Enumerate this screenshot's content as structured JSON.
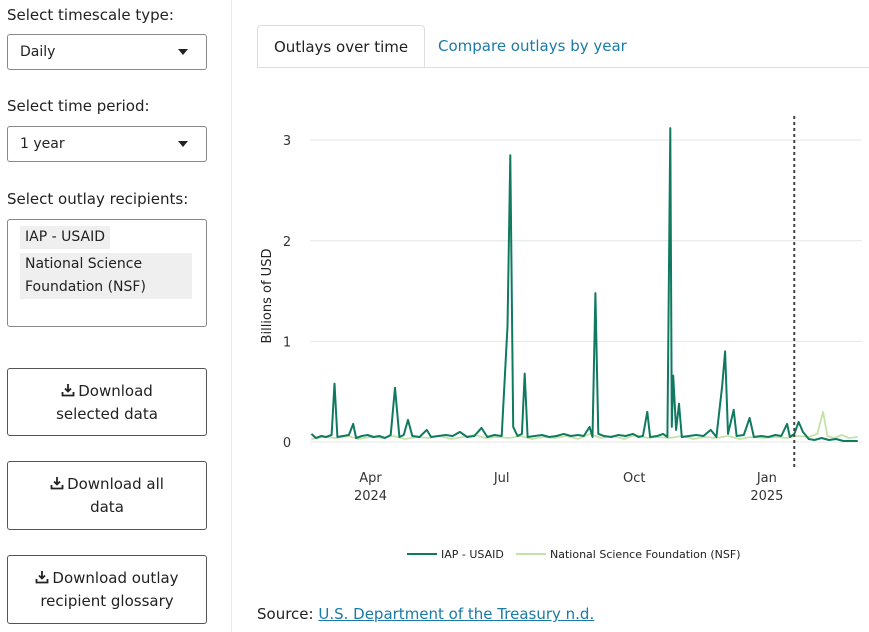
{
  "sidebar": {
    "timescale_label": "Select timescale type:",
    "timescale_value": "Daily",
    "period_label": "Select time period:",
    "period_value": "1 year",
    "recipients_label": "Select outlay recipients:",
    "recipients": [
      "IAP - USAID",
      "National Science",
      "Foundation (NSF)"
    ],
    "buttons": [
      {
        "line1": "Download",
        "line2": "selected data"
      },
      {
        "line1": "Download all",
        "line2": "data"
      },
      {
        "line1": "Download outlay",
        "line2": "recipient glossary"
      }
    ]
  },
  "tabs": [
    {
      "label": "Outlays over time",
      "active": true
    },
    {
      "label": "Compare outlays by year",
      "active": false
    }
  ],
  "source": {
    "prefix": "Source: ",
    "link_text": "U.S. Department of the Treasury n.d."
  },
  "chart_data": {
    "type": "line",
    "ylabel": "Billions of USD",
    "xlabel": "",
    "ylim": [
      0,
      3.2
    ],
    "yticks": [
      0,
      1,
      2,
      3
    ],
    "x_ticks": [
      {
        "date": "2024-04-01",
        "label": "Apr",
        "sublabel": "2024"
      },
      {
        "date": "2024-07-01",
        "label": "Jul",
        "sublabel": ""
      },
      {
        "date": "2024-10-01",
        "label": "Oct",
        "sublabel": ""
      },
      {
        "date": "2025-01-01",
        "label": "Jan",
        "sublabel": "2025"
      }
    ],
    "xrange": [
      "2024-02-19",
      "2025-03-08"
    ],
    "vline_date": "2025-01-20",
    "grid": true,
    "legend_position": "bottom",
    "series": [
      {
        "name": "IAP - USAID",
        "color": "#0f7a60",
        "points": [
          [
            "2024-02-20",
            0.08
          ],
          [
            "2024-02-23",
            0.04
          ],
          [
            "2024-02-27",
            0.06
          ],
          [
            "2024-03-01",
            0.05
          ],
          [
            "2024-03-05",
            0.07
          ],
          [
            "2024-03-07",
            0.58
          ],
          [
            "2024-03-09",
            0.05
          ],
          [
            "2024-03-13",
            0.06
          ],
          [
            "2024-03-17",
            0.07
          ],
          [
            "2024-03-20",
            0.18
          ],
          [
            "2024-03-22",
            0.04
          ],
          [
            "2024-03-26",
            0.06
          ],
          [
            "2024-03-30",
            0.07
          ],
          [
            "2024-04-03",
            0.05
          ],
          [
            "2024-04-07",
            0.06
          ],
          [
            "2024-04-11",
            0.04
          ],
          [
            "2024-04-15",
            0.07
          ],
          [
            "2024-04-18",
            0.54
          ],
          [
            "2024-04-21",
            0.05
          ],
          [
            "2024-04-24",
            0.07
          ],
          [
            "2024-04-27",
            0.22
          ],
          [
            "2024-04-30",
            0.06
          ],
          [
            "2024-05-05",
            0.05
          ],
          [
            "2024-05-10",
            0.12
          ],
          [
            "2024-05-13",
            0.05
          ],
          [
            "2024-05-18",
            0.06
          ],
          [
            "2024-05-23",
            0.07
          ],
          [
            "2024-05-28",
            0.06
          ],
          [
            "2024-06-02",
            0.1
          ],
          [
            "2024-06-07",
            0.05
          ],
          [
            "2024-06-12",
            0.06
          ],
          [
            "2024-06-17",
            0.14
          ],
          [
            "2024-06-21",
            0.05
          ],
          [
            "2024-06-26",
            0.07
          ],
          [
            "2024-07-01",
            0.06
          ],
          [
            "2024-07-05",
            1.15
          ],
          [
            "2024-07-07",
            2.85
          ],
          [
            "2024-07-09",
            0.15
          ],
          [
            "2024-07-12",
            0.06
          ],
          [
            "2024-07-15",
            0.08
          ],
          [
            "2024-07-17",
            0.68
          ],
          [
            "2024-07-19",
            0.05
          ],
          [
            "2024-07-24",
            0.06
          ],
          [
            "2024-07-29",
            0.07
          ],
          [
            "2024-08-03",
            0.05
          ],
          [
            "2024-08-08",
            0.06
          ],
          [
            "2024-08-13",
            0.08
          ],
          [
            "2024-08-18",
            0.06
          ],
          [
            "2024-08-23",
            0.07
          ],
          [
            "2024-08-27",
            0.06
          ],
          [
            "2024-08-31",
            0.15
          ],
          [
            "2024-09-02",
            0.05
          ],
          [
            "2024-09-04",
            1.48
          ],
          [
            "2024-09-06",
            0.08
          ],
          [
            "2024-09-10",
            0.06
          ],
          [
            "2024-09-15",
            0.05
          ],
          [
            "2024-09-20",
            0.07
          ],
          [
            "2024-09-25",
            0.06
          ],
          [
            "2024-09-30",
            0.08
          ],
          [
            "2024-10-04",
            0.05
          ],
          [
            "2024-10-07",
            0.06
          ],
          [
            "2024-10-10",
            0.3
          ],
          [
            "2024-10-12",
            0.05
          ],
          [
            "2024-10-17",
            0.06
          ],
          [
            "2024-10-21",
            0.08
          ],
          [
            "2024-10-24",
            0.05
          ],
          [
            "2024-10-26",
            3.12
          ],
          [
            "2024-10-27",
            0.15
          ],
          [
            "2024-10-28",
            0.66
          ],
          [
            "2024-10-30",
            0.12
          ],
          [
            "2024-11-01",
            0.38
          ],
          [
            "2024-11-03",
            0.05
          ],
          [
            "2024-11-08",
            0.06
          ],
          [
            "2024-11-13",
            0.07
          ],
          [
            "2024-11-18",
            0.06
          ],
          [
            "2024-11-23",
            0.12
          ],
          [
            "2024-11-27",
            0.05
          ],
          [
            "2024-12-01",
            0.56
          ],
          [
            "2024-12-03",
            0.9
          ],
          [
            "2024-12-05",
            0.08
          ],
          [
            "2024-12-09",
            0.32
          ],
          [
            "2024-12-11",
            0.06
          ],
          [
            "2024-12-16",
            0.07
          ],
          [
            "2024-12-20",
            0.24
          ],
          [
            "2024-12-23",
            0.05
          ],
          [
            "2024-12-28",
            0.06
          ],
          [
            "2025-01-02",
            0.05
          ],
          [
            "2025-01-07",
            0.07
          ],
          [
            "2025-01-11",
            0.06
          ],
          [
            "2025-01-15",
            0.18
          ],
          [
            "2025-01-17",
            0.05
          ],
          [
            "2025-01-20",
            0.08
          ],
          [
            "2025-01-23",
            0.2
          ],
          [
            "2025-01-26",
            0.1
          ],
          [
            "2025-01-30",
            0.03
          ],
          [
            "2025-02-03",
            0.02
          ],
          [
            "2025-02-08",
            0.04
          ],
          [
            "2025-02-13",
            0.02
          ],
          [
            "2025-02-18",
            0.03
          ],
          [
            "2025-02-23",
            0.01
          ],
          [
            "2025-03-01",
            0.01
          ],
          [
            "2025-03-05",
            0.01
          ]
        ]
      },
      {
        "name": "National Science Foundation (NSF)",
        "color": "#c5e3a8",
        "points": [
          [
            "2024-02-20",
            0.03
          ],
          [
            "2024-02-28",
            0.05
          ],
          [
            "2024-03-08",
            0.04
          ],
          [
            "2024-03-16",
            0.06
          ],
          [
            "2024-03-24",
            0.03
          ],
          [
            "2024-04-01",
            0.05
          ],
          [
            "2024-04-09",
            0.04
          ],
          [
            "2024-04-17",
            0.06
          ],
          [
            "2024-04-25",
            0.03
          ],
          [
            "2024-05-03",
            0.05
          ],
          [
            "2024-05-11",
            0.04
          ],
          [
            "2024-05-19",
            0.06
          ],
          [
            "2024-05-27",
            0.03
          ],
          [
            "2024-06-04",
            0.05
          ],
          [
            "2024-06-12",
            0.07
          ],
          [
            "2024-06-20",
            0.04
          ],
          [
            "2024-06-28",
            0.05
          ],
          [
            "2024-07-06",
            0.04
          ],
          [
            "2024-07-14",
            0.06
          ],
          [
            "2024-07-22",
            0.03
          ],
          [
            "2024-07-30",
            0.05
          ],
          [
            "2024-08-07",
            0.04
          ],
          [
            "2024-08-15",
            0.06
          ],
          [
            "2024-08-23",
            0.03
          ],
          [
            "2024-08-31",
            0.08
          ],
          [
            "2024-09-08",
            0.04
          ],
          [
            "2024-09-16",
            0.06
          ],
          [
            "2024-09-24",
            0.03
          ],
          [
            "2024-10-02",
            0.07
          ],
          [
            "2024-10-10",
            0.04
          ],
          [
            "2024-10-18",
            0.05
          ],
          [
            "2024-10-26",
            0.04
          ],
          [
            "2024-11-03",
            0.06
          ],
          [
            "2024-11-11",
            0.03
          ],
          [
            "2024-11-19",
            0.05
          ],
          [
            "2024-11-27",
            0.04
          ],
          [
            "2024-12-05",
            0.06
          ],
          [
            "2024-12-13",
            0.03
          ],
          [
            "2024-12-21",
            0.05
          ],
          [
            "2024-12-29",
            0.04
          ],
          [
            "2025-01-06",
            0.05
          ],
          [
            "2025-01-14",
            0.04
          ],
          [
            "2025-01-22",
            0.06
          ],
          [
            "2025-01-30",
            0.05
          ],
          [
            "2025-02-05",
            0.08
          ],
          [
            "2025-02-09",
            0.3
          ],
          [
            "2025-02-12",
            0.06
          ],
          [
            "2025-02-17",
            0.04
          ],
          [
            "2025-02-22",
            0.07
          ],
          [
            "2025-02-27",
            0.04
          ],
          [
            "2025-03-05",
            0.05
          ]
        ]
      }
    ]
  }
}
